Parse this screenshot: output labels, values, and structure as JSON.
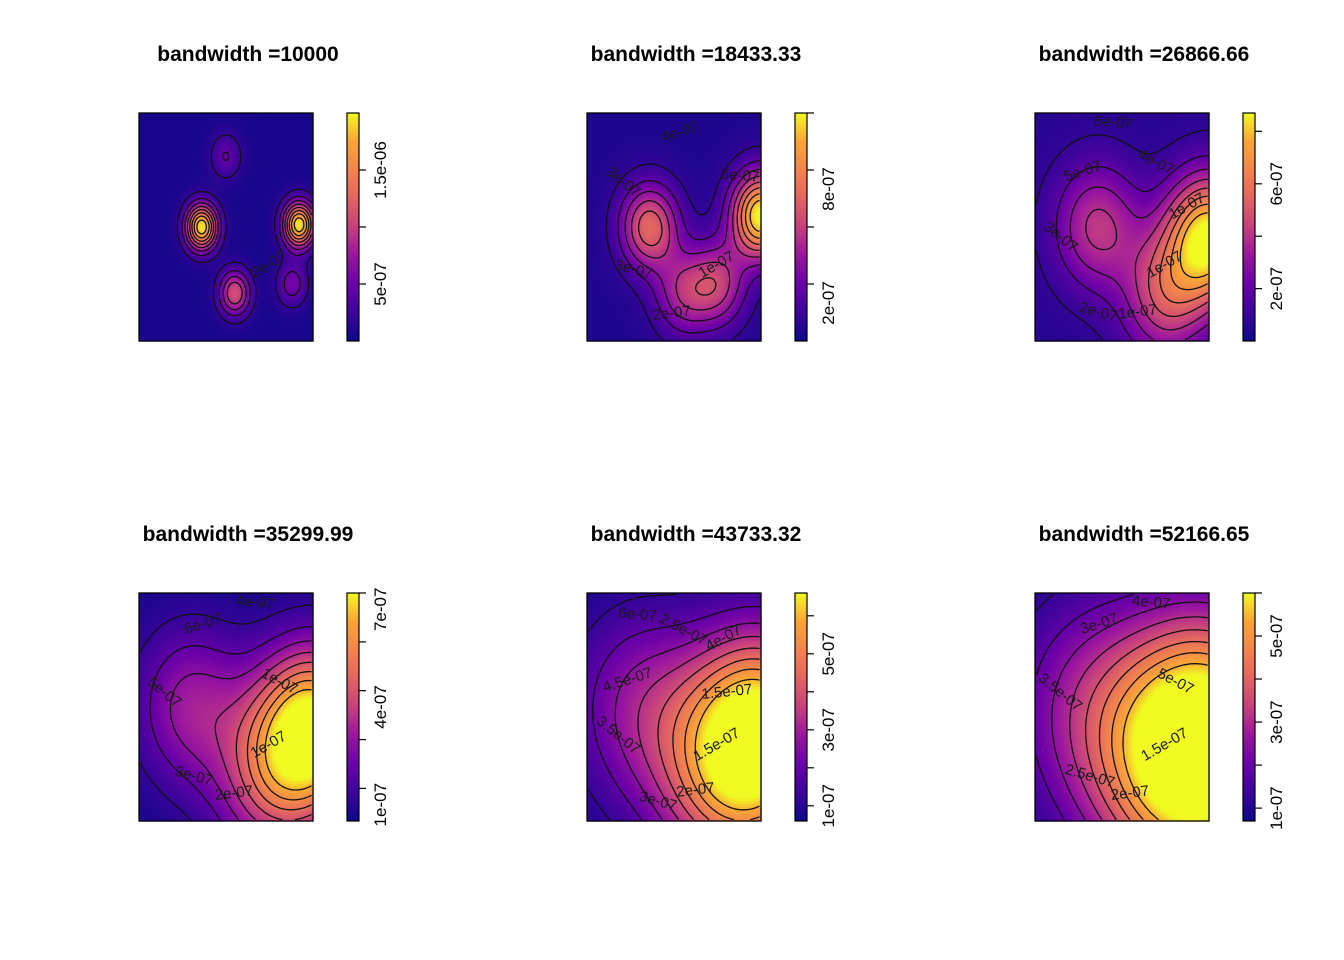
{
  "figure": {
    "layout": "2x3"
  },
  "chart_data": [
    {
      "type": "heatmap",
      "title": "bandwidth =10000",
      "colorbar": {
        "labels": [
          "5e-07",
          "1.5e-06"
        ]
      },
      "contour_labels": [
        "2e-07"
      ],
      "palette": "plasma",
      "peaks": [
        {
          "x": 0.36,
          "y": 0.5,
          "value": 1.9e-06
        },
        {
          "x": 0.92,
          "y": 0.51,
          "value": 1.9e-06
        },
        {
          "x": 0.55,
          "y": 0.21,
          "value": 1.05e-06
        },
        {
          "x": 0.5,
          "y": 0.81,
          "value": 4e-07
        },
        {
          "x": 0.88,
          "y": 0.25,
          "value": 5e-07
        }
      ]
    },
    {
      "type": "heatmap",
      "title": "bandwidth =18433.33",
      "colorbar": {
        "labels": [
          "2e-07",
          "8e-07"
        ]
      },
      "contour_labels": [
        "1e-07",
        "2e-07",
        "3e-07",
        "3e-07",
        "4e-07",
        "6e-07"
      ],
      "palette": "plasma",
      "peaks": [
        {
          "x": 0.36,
          "y": 0.5,
          "value": 7e-07
        },
        {
          "x": 1.0,
          "y": 0.55,
          "value": 1.15e-06
        },
        {
          "x": 0.55,
          "y": 0.21,
          "value": 4e-07
        },
        {
          "x": 0.75,
          "y": 0.25,
          "value": 5e-07
        }
      ]
    },
    {
      "type": "heatmap",
      "title": "bandwidth =26866.66",
      "colorbar": {
        "labels": [
          "2e-07",
          "6e-07"
        ]
      },
      "contour_labels": [
        "1e-07",
        "1e-07",
        "2e-07",
        "3e-07",
        "5e-07",
        "6e-07",
        "4e-07",
        "1e-07"
      ],
      "palette": "plasma",
      "peaks": [
        {
          "x": 0.36,
          "y": 0.5,
          "value": 3.5e-07
        },
        {
          "x": 1.0,
          "y": 0.45,
          "value": 8.2e-07
        },
        {
          "x": 0.75,
          "y": 0.2,
          "value": 4e-07
        }
      ]
    },
    {
      "type": "heatmap",
      "title": "bandwidth =35299.99",
      "colorbar": {
        "labels": [
          "1e-07",
          "4e-07",
          "7e-07"
        ]
      },
      "contour_labels": [
        "1e-07",
        "2e-07",
        "3e-07",
        "5e-07",
        "6e-07",
        "4e-07",
        "1e-07"
      ],
      "palette": "plasma",
      "peaks": [
        {
          "x": 0.3,
          "y": 0.5,
          "value": 2.5e-07
        },
        {
          "x": 1.0,
          "y": 0.4,
          "value": 7.2e-07
        },
        {
          "x": 0.75,
          "y": 0.18,
          "value": 3e-07
        }
      ]
    },
    {
      "type": "heatmap",
      "title": "bandwidth =43733.32",
      "colorbar": {
        "labels": [
          "1e-07",
          "3e-07",
          "5e-07"
        ]
      },
      "contour_labels": [
        "1.5e-07",
        "2e-07",
        "3e-07",
        "3.5e-07",
        "4.5e-07",
        "6e-07",
        "2.5e-07",
        "4e-07",
        "1.5e-07"
      ],
      "palette": "plasma",
      "peaks": [
        {
          "x": 0.3,
          "y": 0.5,
          "value": 2e-07
        },
        {
          "x": 1.0,
          "y": 0.38,
          "value": 6.2e-07
        },
        {
          "x": 0.75,
          "y": 0.18,
          "value": 2.5e-07
        }
      ]
    },
    {
      "type": "heatmap",
      "title": "bandwidth =52166.65",
      "colorbar": {
        "labels": [
          "1e-07",
          "3e-07",
          "5e-07"
        ]
      },
      "contour_labels": [
        "1.5e-07",
        "2e-07",
        "2.5e-07",
        "3.5e-07",
        "3e-07",
        "4e-07",
        "5e-07"
      ],
      "palette": "plasma",
      "peaks": [
        {
          "x": 0.3,
          "y": 0.5,
          "value": 1.8e-07
        },
        {
          "x": 1.0,
          "y": 0.36,
          "value": 5.8e-07
        },
        {
          "x": 0.75,
          "y": 0.18,
          "value": 2.2e-07
        }
      ]
    }
  ]
}
